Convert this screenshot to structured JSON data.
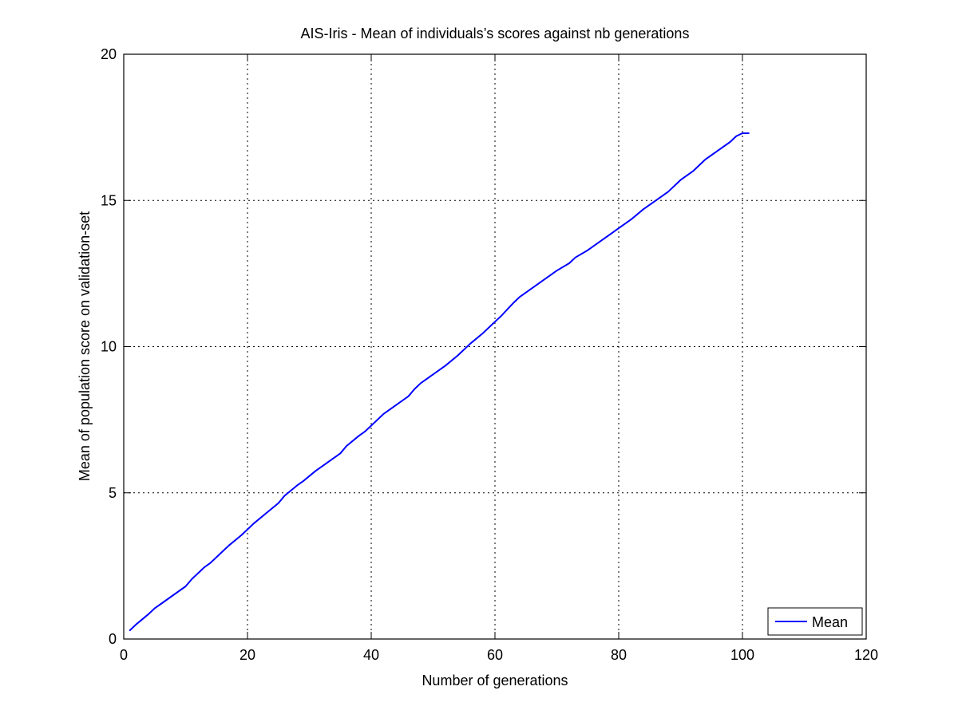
{
  "chart_data": {
    "type": "line",
    "title": "AIS-Iris - Mean of individuals’s scores against nb generations",
    "xlabel": "Number of generations",
    "ylabel": "Mean of population score on validation-set",
    "xlim": [
      0,
      120
    ],
    "ylim": [
      0,
      20
    ],
    "xticks": [
      0,
      20,
      40,
      60,
      80,
      100,
      120
    ],
    "yticks": [
      0,
      5,
      10,
      15,
      20
    ],
    "grid": true,
    "legend_position": "bottom-right",
    "series": [
      {
        "name": "Mean",
        "color": "#0000ff",
        "x": [
          1,
          2,
          4,
          5,
          7,
          8,
          10,
          11,
          13,
          14,
          16,
          17,
          19,
          20,
          21,
          23,
          25,
          26,
          28,
          29,
          31,
          33,
          35,
          36,
          38,
          39,
          40,
          42,
          44,
          46,
          47,
          48,
          50,
          52,
          54,
          56,
          58,
          60,
          61,
          63,
          64,
          66,
          68,
          70,
          72,
          73,
          75,
          77,
          79,
          80,
          82,
          84,
          86,
          88,
          90,
          92,
          94,
          96,
          98,
          99,
          100,
          101
        ],
        "y": [
          0.3,
          0.5,
          0.85,
          1.05,
          1.35,
          1.5,
          1.8,
          2.05,
          2.45,
          2.6,
          3.0,
          3.2,
          3.55,
          3.75,
          3.95,
          4.3,
          4.65,
          4.9,
          5.25,
          5.4,
          5.75,
          6.05,
          6.35,
          6.6,
          6.95,
          7.1,
          7.3,
          7.7,
          8.0,
          8.3,
          8.55,
          8.75,
          9.05,
          9.35,
          9.7,
          10.1,
          10.45,
          10.85,
          11.05,
          11.5,
          11.7,
          12.0,
          12.3,
          12.6,
          12.85,
          13.05,
          13.3,
          13.6,
          13.9,
          14.05,
          14.35,
          14.7,
          15.0,
          15.3,
          15.7,
          16.0,
          16.4,
          16.7,
          17.0,
          17.2,
          17.3,
          17.3
        ]
      }
    ]
  }
}
